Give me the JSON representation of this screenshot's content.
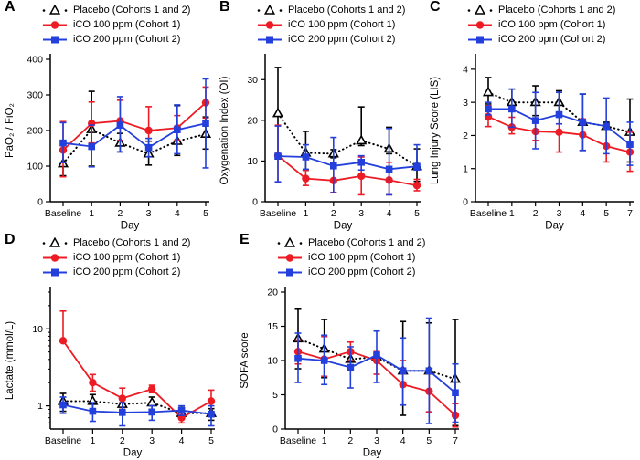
{
  "figure": {
    "panels": [
      "A",
      "B",
      "C",
      "D",
      "E"
    ],
    "colors": {
      "placebo": "#000000",
      "ico100": "#ed1c24",
      "ico200": "#2340dc"
    }
  },
  "chart_data": [
    {
      "panel_label": "A",
      "type": "line",
      "title": "",
      "xlabel": "Day",
      "ylabel": "PaO₂ / FiO₂",
      "categories": [
        "Baseline",
        "1",
        "2",
        "3",
        "4",
        "5"
      ],
      "ylim": [
        0,
        400
      ],
      "yticks": [
        0,
        100,
        200,
        300,
        400
      ],
      "yscale": "linear",
      "grid": false,
      "legend_position": "top",
      "series": [
        {
          "name": "Placebo (Cohorts 1 and 2)",
          "color": "#000000",
          "marker": "triangle-open",
          "line": "dotted",
          "values": [
            107,
            203,
            165,
            135,
            170,
            190
          ],
          "err_lo": [
            73,
            100,
            140,
            103,
            130,
            148
          ],
          "err_hi": [
            145,
            310,
            192,
            170,
            270,
            238
          ]
        },
        {
          "name": "iCO 100 ppm (Cohort 1)",
          "color": "#ed1c24",
          "marker": "circle",
          "line": "solid",
          "values": [
            145,
            220,
            227,
            200,
            207,
            278
          ],
          "err_lo": [
            70,
            165,
            172,
            150,
            173,
            235
          ],
          "err_hi": [
            225,
            280,
            285,
            267,
            242,
            322
          ]
        },
        {
          "name": "iCO 200 ppm (Cohort 2)",
          "color": "#2340dc",
          "marker": "square",
          "line": "solid",
          "values": [
            165,
            155,
            215,
            152,
            202,
            220
          ],
          "err_lo": [
            110,
            98,
            140,
            126,
            135,
            95
          ],
          "err_hi": [
            222,
            215,
            295,
            178,
            272,
            345
          ]
        }
      ]
    },
    {
      "panel_label": "B",
      "type": "line",
      "title": "",
      "xlabel": "Day",
      "ylabel": "Oxygenation Index (OI)",
      "categories": [
        "Baseline",
        "1",
        "2",
        "3",
        "4",
        "5"
      ],
      "ylim": [
        0,
        35
      ],
      "yticks": [
        0,
        10,
        20,
        30
      ],
      "yscale": "linear",
      "grid": false,
      "legend_position": "top",
      "series": [
        {
          "name": "Placebo (Cohorts 1 and 2)",
          "color": "#000000",
          "marker": "triangle-open",
          "line": "dotted",
          "values": [
            21.7,
            12,
            11.8,
            15,
            13,
            8.7
          ],
          "err_lo": [
            10.5,
            7.7,
            10.8,
            13.8,
            11.8,
            5
          ],
          "err_hi": [
            33,
            17.3,
            12.8,
            23.3,
            18.3,
            13
          ]
        },
        {
          "name": "iCO 100 ppm (Cohort 1)",
          "color": "#ed1c24",
          "marker": "circle",
          "line": "solid",
          "values": [
            11.3,
            5.7,
            5.2,
            6.3,
            5.3,
            4
          ],
          "err_lo": [
            4.7,
            4,
            2.3,
            1.7,
            1.7,
            2.7
          ],
          "err_hi": [
            18.8,
            7.7,
            8.2,
            11,
            9.7,
            5.5
          ]
        },
        {
          "name": "iCO 200 ppm (Cohort 2)",
          "color": "#2340dc",
          "marker": "square",
          "line": "solid",
          "values": [
            11.2,
            11,
            8.8,
            9.7,
            8,
            8.7
          ],
          "err_lo": [
            4.9,
            8,
            2.2,
            7.8,
            1.7,
            7.8
          ],
          "err_hi": [
            18.6,
            14,
            15.8,
            11.3,
            18,
            14
          ]
        }
      ]
    },
    {
      "panel_label": "C",
      "type": "line",
      "title": "",
      "xlabel": "Day",
      "ylabel": "Lung Injury Score (LIS)",
      "categories": [
        "Baseline",
        "1",
        "2",
        "3",
        "4",
        "5",
        "7"
      ],
      "ylim": [
        0,
        4.3
      ],
      "yticks": [
        0,
        1,
        2,
        3,
        4
      ],
      "yscale": "linear",
      "grid": false,
      "legend_position": "top",
      "series": [
        {
          "name": "Placebo (Cohorts 1 and 2)",
          "color": "#000000",
          "marker": "triangle-open",
          "line": "dotted",
          "values": [
            3.3,
            3.0,
            3.0,
            3.0,
            2.4,
            2.28,
            2.1
          ],
          "err_lo": [
            2.95,
            2.8,
            2.6,
            2.65,
            1.55,
            2.2,
            1.2
          ],
          "err_hi": [
            3.75,
            3.4,
            3.5,
            3.35,
            3.25,
            2.4,
            3.1
          ]
        },
        {
          "name": "iCO 100 ppm (Cohort 1)",
          "color": "#ed1c24",
          "marker": "circle",
          "line": "solid",
          "values": [
            2.57,
            2.25,
            2.12,
            2.1,
            2.02,
            1.68,
            1.5
          ],
          "err_lo": [
            2.27,
            2.05,
            1.85,
            1.5,
            1.55,
            1.2,
            0.92
          ],
          "err_hi": [
            2.9,
            2.55,
            2.4,
            2.35,
            2.5,
            2.2,
            2.1
          ]
        },
        {
          "name": "iCO 200 ppm (Cohort 2)",
          "color": "#2340dc",
          "marker": "square",
          "line": "solid",
          "values": [
            2.8,
            2.8,
            2.45,
            2.63,
            2.4,
            2.28,
            1.73
          ],
          "err_lo": [
            2.62,
            2.25,
            1.6,
            2.35,
            1.55,
            1.45,
            1.1
          ],
          "err_hi": [
            3.0,
            3.4,
            3.3,
            3.3,
            3.25,
            3.13,
            2.4
          ]
        }
      ]
    },
    {
      "panel_label": "D",
      "type": "line",
      "title": "",
      "xlabel": "Day",
      "ylabel": "Lactate (mmol/L)",
      "categories": [
        "Baseline",
        "1",
        "2",
        "3",
        "4",
        "5"
      ],
      "ylim": [
        0.5,
        30
      ],
      "yticks": [
        1,
        10
      ],
      "yticks_minor": [
        0.6,
        0.7,
        0.8,
        0.9,
        2,
        3,
        4,
        5,
        6,
        7,
        8,
        9,
        20,
        30
      ],
      "yscale": "log",
      "grid": false,
      "legend_position": "top",
      "series": [
        {
          "name": "Placebo (Cohorts 1 and 2)",
          "color": "#000000",
          "marker": "triangle-open",
          "line": "dotted",
          "values": [
            1.15,
            1.15,
            1.05,
            1.1,
            0.8,
            0.8
          ],
          "err_lo": [
            0.85,
            0.9,
            0.9,
            0.9,
            0.7,
            0.65
          ],
          "err_hi": [
            1.45,
            1.4,
            1.2,
            1.3,
            0.95,
            0.92
          ]
        },
        {
          "name": "iCO 100 ppm (Cohort 1)",
          "color": "#ed1c24",
          "marker": "circle",
          "line": "solid",
          "values": [
            7,
            2.0,
            1.25,
            1.65,
            0.7,
            1.15
          ],
          "err_lo": [
            7,
            1.55,
            0.9,
            1.48,
            0.6,
            0.75
          ],
          "err_hi": [
            17,
            2.55,
            1.7,
            1.85,
            0.8,
            1.6
          ]
        },
        {
          "name": "iCO 200 ppm (Cohort 2)",
          "color": "#2340dc",
          "marker": "square",
          "line": "solid",
          "values": [
            1.03,
            0.85,
            0.82,
            0.83,
            0.87,
            0.78
          ],
          "err_lo": [
            0.8,
            0.63,
            0.55,
            0.65,
            0.75,
            0.55
          ],
          "err_hi": [
            1.3,
            1.1,
            1.1,
            1.0,
            1.0,
            1.0
          ]
        }
      ]
    },
    {
      "panel_label": "E",
      "type": "line",
      "title": "",
      "xlabel": "Day",
      "ylabel": "SOFA score",
      "categories": [
        "Baseline",
        "1",
        "2",
        "3",
        "4",
        "5",
        "7"
      ],
      "ylim": [
        0,
        20
      ],
      "yticks": [
        0,
        5,
        10,
        15,
        20
      ],
      "yscale": "linear",
      "grid": false,
      "legend_position": "top",
      "series": [
        {
          "name": "Placebo (Cohorts 1 and 2)",
          "color": "#000000",
          "marker": "triangle-open",
          "line": "dotted",
          "values": [
            13.2,
            11.7,
            10.2,
            10.5,
            8.5,
            8.5,
            7.3
          ],
          "err_lo": [
            8.8,
            7.5,
            9.3,
            10,
            2,
            2.5,
            0.5
          ],
          "err_hi": [
            17.5,
            16,
            11,
            11.2,
            15.7,
            15.5,
            16
          ]
        },
        {
          "name": "iCO 100 ppm (Cohort 1)",
          "color": "#ed1c24",
          "marker": "circle",
          "line": "solid",
          "values": [
            11.3,
            10.2,
            11.3,
            10,
            6.5,
            5.5,
            2
          ],
          "err_lo": [
            9.5,
            7.7,
            10,
            8,
            3.5,
            2.5,
            0.3
          ],
          "err_hi": [
            13,
            13.5,
            12.7,
            11.3,
            10,
            8.5,
            3.7
          ]
        },
        {
          "name": "iCO 200 ppm (Cohort 2)",
          "color": "#2340dc",
          "marker": "square",
          "line": "solid",
          "values": [
            10.3,
            10,
            9,
            10.8,
            8.5,
            8.5,
            5.3
          ],
          "err_lo": [
            6.8,
            6.5,
            6,
            6.8,
            3.5,
            0.8,
            1
          ],
          "err_hi": [
            14,
            13.7,
            12,
            14.3,
            13.3,
            16.2,
            9.5
          ]
        }
      ]
    }
  ]
}
